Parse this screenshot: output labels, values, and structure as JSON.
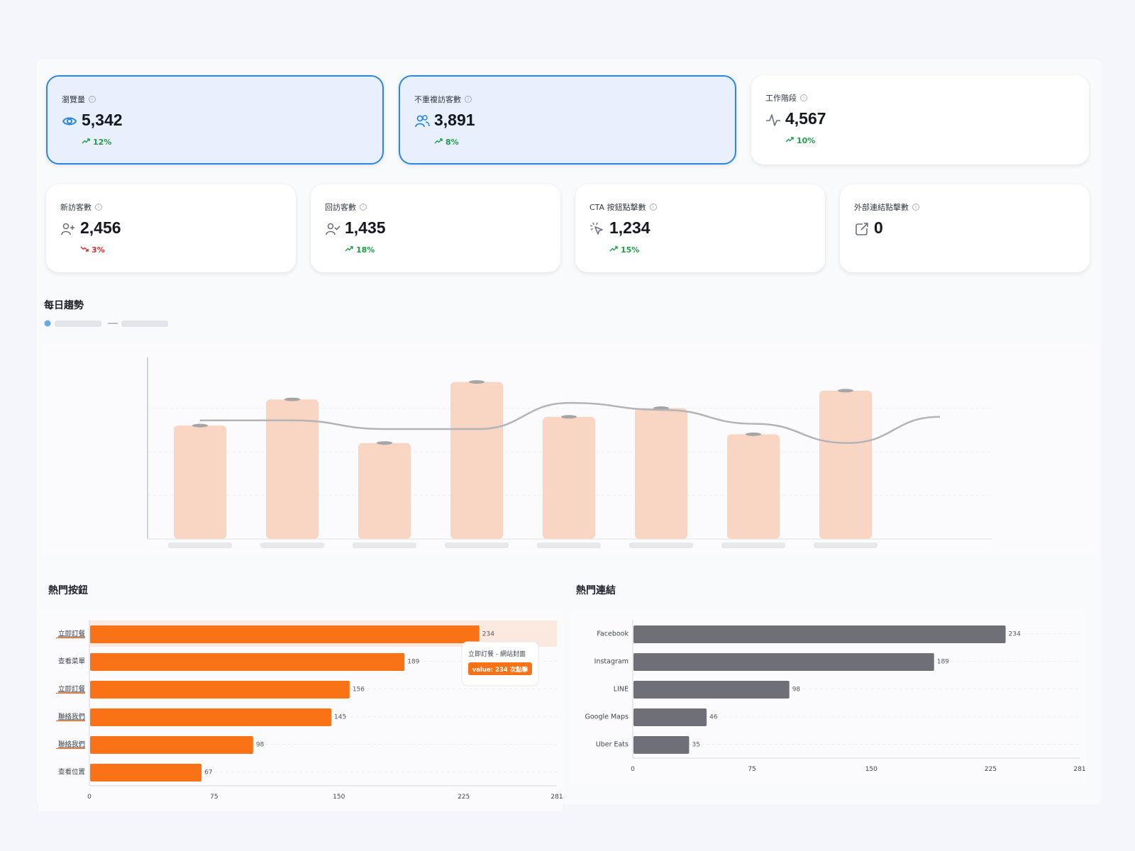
{
  "summary_cards": [
    {
      "label": "瀏覽量",
      "value": "5,342",
      "change": "12%",
      "trend": "up",
      "icon": "eye-icon",
      "selected": true
    },
    {
      "label": "不重複訪客數",
      "value": "3,891",
      "change": "8%",
      "trend": "up",
      "icon": "users-icon",
      "selected": true
    },
    {
      "label": "工作階段",
      "value": "4,567",
      "change": "10%",
      "trend": "up",
      "icon": "activity-icon",
      "selected": false
    }
  ],
  "metric_cards": [
    {
      "label": "新訪客數",
      "value": "2,456",
      "change": "3%",
      "trend": "down",
      "icon": "user-plus-icon"
    },
    {
      "label": "回訪客數",
      "value": "1,435",
      "change": "18%",
      "trend": "up",
      "icon": "user-check-icon"
    },
    {
      "label": "CTA 按鈕點擊數",
      "value": "1,234",
      "change": "15%",
      "trend": "up",
      "icon": "cursor-click-icon"
    },
    {
      "label": "外部連結點擊數",
      "value": "0",
      "change": "",
      "trend": "none",
      "icon": "external-link-icon"
    }
  ],
  "colors": {
    "accent_blue": "#2f86de",
    "up": "#1f9d48",
    "down": "#d32f2f",
    "orange": "#f97316",
    "gray_bar": "#6f6f78",
    "trend_bar": "#f9d5c3"
  },
  "daily_trend": {
    "title": "每日趨勢",
    "legend_placement": "top-left",
    "legend_labels_visible": false,
    "axis_labels_visible": false,
    "chart_data": {
      "type": "bar",
      "categories_count": 8,
      "bar_values": [
        0.65,
        0.8,
        0.55,
        0.9,
        0.7,
        0.75,
        0.6,
        0.85
      ],
      "line_values": [
        0.68,
        0.68,
        0.63,
        0.63,
        0.78,
        0.74,
        0.66,
        0.55,
        0.7
      ],
      "y_range": [
        0,
        1
      ]
    }
  },
  "top_buttons": {
    "title": "熱門按鈕",
    "chart_data": {
      "type": "bar",
      "orientation": "horizontal",
      "categories": [
        "立即訂餐",
        "查看菜單",
        "立即訂餐",
        "聯絡我們",
        "聯絡我們",
        "查看位置"
      ],
      "values": [
        234,
        189,
        156,
        145,
        98,
        67
      ],
      "xlim": [
        0,
        281
      ],
      "xticks": [
        "0",
        "75",
        "150",
        "225",
        "281"
      ],
      "grid": true
    },
    "tooltip": {
      "title": "立即訂餐 - 網站封面",
      "value": "value: 234 次點擊"
    }
  },
  "top_links": {
    "title": "熱門連結",
    "chart_data": {
      "type": "bar",
      "orientation": "horizontal",
      "categories": [
        "Facebook",
        "Instagram",
        "LINE",
        "Google Maps",
        "Uber Eats"
      ],
      "values": [
        234,
        189,
        98,
        46,
        35
      ],
      "xlim": [
        0,
        281
      ],
      "xticks": [
        "0",
        "75",
        "150",
        "225",
        "281"
      ],
      "grid": true
    }
  }
}
